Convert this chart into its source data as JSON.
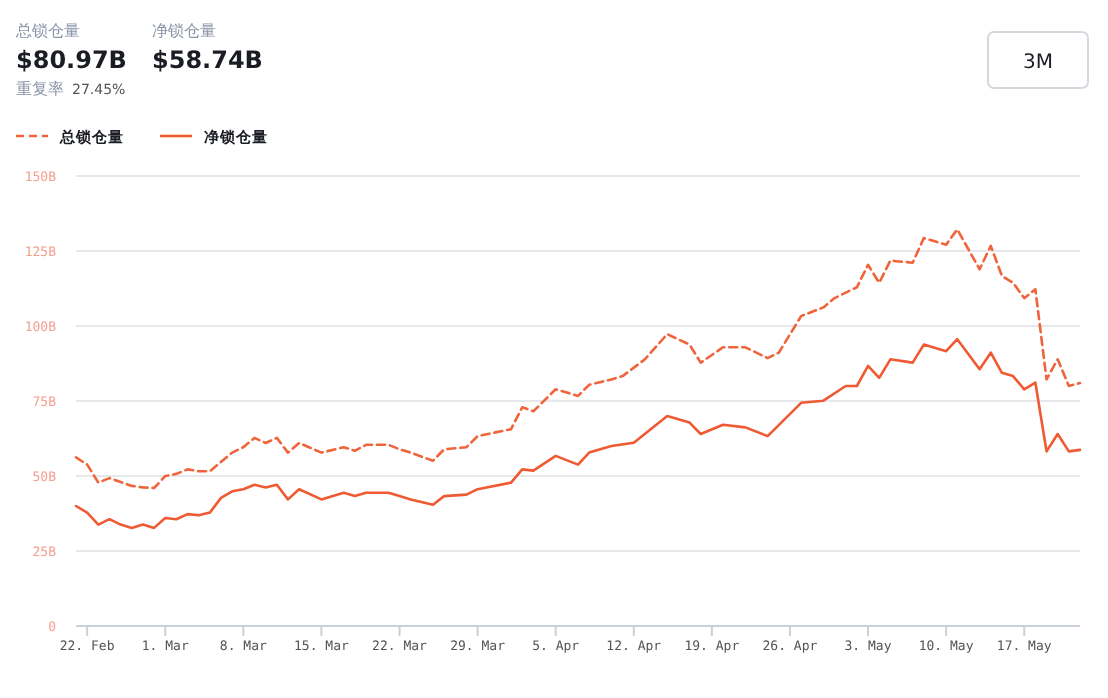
{
  "chart_data": {
    "type": "line",
    "annotations": [
      "总锁仓量",
      "$80.97B",
      "净锁仓量",
      "$58.74B",
      "重复率",
      "27.45%",
      "3M"
    ],
    "xlim": [
      "--02-21",
      "--05-22"
    ],
    "xticks": [
      {
        "value": "--02-22",
        "label": "22. Feb"
      },
      {
        "value": "--03-01",
        "label": "1. Mar"
      },
      {
        "value": "--03-08",
        "label": "8. Mar"
      },
      {
        "value": "--03-15",
        "label": "15. Mar"
      },
      {
        "value": "--03-22",
        "label": "22. Mar"
      },
      {
        "value": "--03-29",
        "label": "29. Mar"
      },
      {
        "value": "--04-05",
        "label": "5. Apr"
      },
      {
        "value": "--04-12",
        "label": "12. Apr"
      },
      {
        "value": "--04-19",
        "label": "19. Apr"
      },
      {
        "value": "--04-26",
        "label": "26. Apr"
      },
      {
        "value": "--05-03",
        "label": "3. May"
      },
      {
        "value": "--05-10",
        "label": "10. May"
      },
      {
        "value": "--05-17",
        "label": "17. May"
      }
    ],
    "ylim": [
      0,
      150
    ],
    "yticks": [
      0,
      {
        "value": 25,
        "label": "25B"
      },
      {
        "value": 50,
        "label": "50B"
      },
      {
        "value": 75,
        "label": "75B"
      },
      {
        "value": 100,
        "label": "100B"
      },
      {
        "value": 125,
        "label": "125B"
      },
      {
        "value": 150,
        "label": "150B"
      }
    ],
    "grid": "y",
    "legend": "top left",
    "series": [
      {
        "name": "总锁仓量",
        "color": "#f0643c",
        "line_style": "dashed",
        "x": [
          "--02-21",
          "--02-22",
          "--02-23",
          "--02-24",
          "--02-26",
          "--02-27",
          "--02-28",
          "--03-01",
          "--03-02",
          "--03-03",
          "--03-04",
          "--03-05",
          "--03-07",
          "--03-08",
          "--03-09",
          "--03-10",
          "--03-11",
          "--03-12",
          "--03-13",
          "--03-15",
          "--03-17",
          "--03-18",
          "--03-19",
          "--03-21",
          "--03-22",
          "--03-23",
          "--03-25",
          "--03-26",
          "--03-28",
          "--03-29",
          "--04-01",
          "--04-02",
          "--04-03",
          "--04-05",
          "--04-07",
          "--04-08",
          "--04-10",
          "--04-11",
          "--04-13",
          "--04-15",
          "--04-17",
          "--04-18",
          "--04-20",
          "--04-22",
          "--04-24",
          "--04-25",
          "--04-27",
          "--04-29",
          "--04-30",
          "--05-02",
          "--05-03",
          "--05-04",
          "--05-05",
          "--05-07",
          "--05-08",
          "--05-10",
          "--05-11",
          "--05-13",
          "--05-14",
          "--05-15",
          "--05-16",
          "--05-17",
          "--05-18",
          "--05-19",
          "--05-20",
          "--05-21",
          "--05-22"
        ],
        "values": [
          56.2,
          53.8,
          47.8,
          49.3,
          46.7,
          46.2,
          46,
          50,
          50.7,
          52.2,
          51.6,
          51.6,
          57.8,
          59.6,
          62.7,
          61,
          62.7,
          57.8,
          61,
          57.8,
          59.6,
          58.4,
          60.4,
          60.4,
          58.9,
          57.8,
          55.1,
          58.9,
          59.6,
          63.3,
          65.6,
          72.9,
          71.6,
          78.9,
          76.7,
          80.4,
          82.2,
          83.3,
          88.9,
          97.3,
          93.8,
          87.8,
          92.9,
          92.9,
          89.3,
          91.1,
          103.3,
          106.2,
          109.3,
          112.9,
          120.4,
          114.4,
          121.8,
          121.1,
          129.3,
          127.1,
          132.2,
          118.9,
          126.7,
          116.7,
          114.4,
          109.3,
          112.2,
          82.2,
          88.9,
          80,
          81
        ]
      },
      {
        "name": "净锁仓量",
        "color": "#f05a32",
        "line_style": "solid",
        "x": [
          "--02-21",
          "--02-22",
          "--02-23",
          "--02-24",
          "--02-25",
          "--02-26",
          "--02-27",
          "--02-28",
          "--03-01",
          "--03-02",
          "--03-03",
          "--03-04",
          "--03-05",
          "--03-06",
          "--03-07",
          "--03-08",
          "--03-09",
          "--03-10",
          "--03-11",
          "--03-12",
          "--03-13",
          "--03-15",
          "--03-17",
          "--03-18",
          "--03-19",
          "--03-21",
          "--03-22",
          "--03-23",
          "--03-25",
          "--03-26",
          "--03-28",
          "--03-29",
          "--04-01",
          "--04-02",
          "--04-03",
          "--04-05",
          "--04-07",
          "--04-08",
          "--04-10",
          "--04-12",
          "--04-15",
          "--04-17",
          "--04-18",
          "--04-20",
          "--04-22",
          "--04-24",
          "--04-27",
          "--04-29",
          "--05-01",
          "--05-02",
          "--05-03",
          "--05-04",
          "--05-05",
          "--05-07",
          "--05-08",
          "--05-10",
          "--05-11",
          "--05-13",
          "--05-14",
          "--05-15",
          "--05-16",
          "--05-17",
          "--05-18",
          "--05-19",
          "--05-20",
          "--05-21",
          "--05-22"
        ],
        "values": [
          40,
          37.8,
          33.8,
          35.6,
          33.8,
          32.7,
          33.8,
          32.7,
          36,
          35.6,
          37.3,
          36.9,
          37.8,
          42.7,
          44.9,
          45.6,
          47.1,
          46.2,
          47.1,
          42.2,
          45.6,
          42.2,
          44.4,
          43.3,
          44.4,
          44.4,
          43.3,
          42.2,
          40.4,
          43.3,
          43.8,
          45.6,
          47.8,
          52.2,
          51.8,
          56.7,
          53.8,
          57.8,
          60,
          61.1,
          70,
          67.8,
          64,
          67.1,
          66.2,
          63.3,
          74.4,
          75.1,
          80,
          80,
          86.7,
          82.7,
          88.9,
          87.8,
          93.8,
          91.6,
          95.6,
          85.6,
          91.1,
          84.4,
          83.3,
          78.9,
          81.1,
          58.2,
          64,
          58.2,
          58.7
        ]
      }
    ]
  }
}
